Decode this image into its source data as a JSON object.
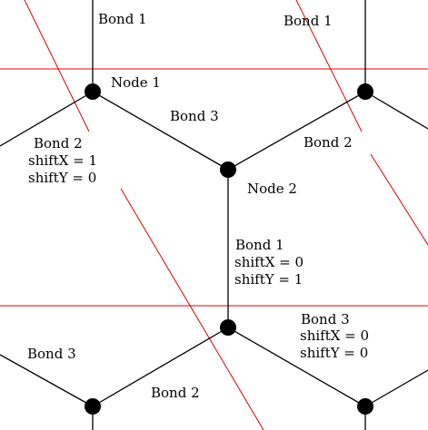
{
  "colors": {
    "background": "#ffffff",
    "bond": "#000000",
    "node": "#000000",
    "boundary": "#e00000"
  },
  "labels": {
    "bond1_top_left": "Bond 1",
    "bond1_top_right": "Bond 1",
    "node1": "Node 1",
    "bond3_mid": "Bond 3",
    "bond2_left": "Bond 2",
    "bond2_left_shiftX": "shiftX = 1",
    "bond2_left_shiftY": "shiftY = 0",
    "bond2_right": "Bond 2",
    "node2": "Node 2",
    "bond1_mid": "Bond 1",
    "bond1_mid_shiftX": "shiftX = 0",
    "bond1_mid_shiftY": "shiftY = 1",
    "bond3_right": "Bond 3",
    "bond3_right_shiftX": "shiftX = 0",
    "bond3_right_shiftY": "shiftY = 0",
    "bond3_left": "Bond 3",
    "bond2_bottom": "Bond 2"
  }
}
